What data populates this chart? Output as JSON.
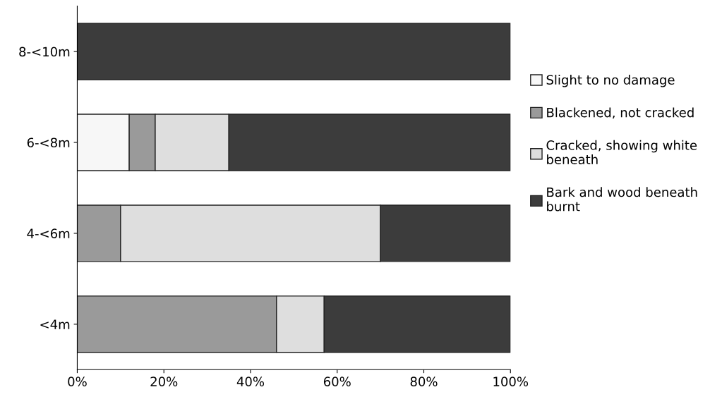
{
  "chart_data": {
    "type": "bar",
    "orientation": "horizontal",
    "stacked": true,
    "categories": [
      "8-<10m",
      "6-<8m",
      "4-<6m",
      "<4m"
    ],
    "series": [
      {
        "name": "Slight to no damage",
        "color": "#f7f7f7",
        "values": [
          0,
          12,
          0,
          0
        ]
      },
      {
        "name": "Blackened, not cracked",
        "color": "#9a9a9a",
        "values": [
          0,
          6,
          10,
          46
        ]
      },
      {
        "name": "Cracked, showing white beneath",
        "color": "#dedede",
        "values": [
          0,
          17,
          60,
          11
        ]
      },
      {
        "name": "Bark and wood beneath burnt",
        "color": "#3c3c3c",
        "values": [
          100,
          65,
          30,
          43
        ]
      }
    ],
    "xlim": [
      0,
      100
    ],
    "xticks": [
      {
        "value": 0,
        "label": "0%"
      },
      {
        "value": 20,
        "label": "20%"
      },
      {
        "value": 40,
        "label": "40%"
      },
      {
        "value": 60,
        "label": "60%"
      },
      {
        "value": 80,
        "label": "80%"
      },
      {
        "value": 100,
        "label": "100%"
      }
    ],
    "grid": false,
    "legend": "right"
  }
}
